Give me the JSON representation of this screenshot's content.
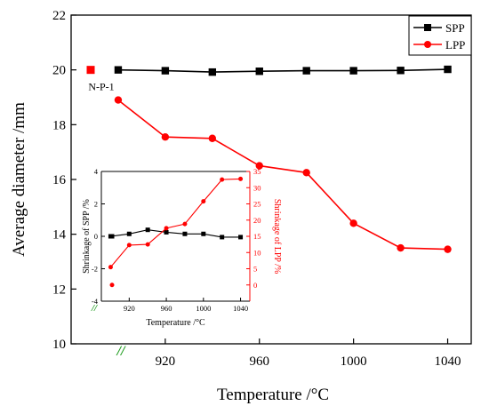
{
  "chart_data": [
    {
      "type": "line",
      "role": "main",
      "xlabel": "Temperature /°C",
      "ylabel": "Average diameter /mm",
      "xlim": [
        880,
        1050
      ],
      "ylim": [
        10,
        22
      ],
      "x_ticks": [
        920,
        960,
        1000,
        1040
      ],
      "y_ticks": [
        10,
        12,
        14,
        16,
        18,
        20,
        22
      ],
      "legend_position": "top-right",
      "axis_break_mark": "//",
      "reference_point": {
        "label": "N-P-1",
        "y": 20
      },
      "series": [
        {
          "name": "SPP",
          "color": "#000000",
          "marker": "square",
          "x": [
            900,
            920,
            940,
            960,
            980,
            1000,
            1020,
            1040
          ],
          "y": [
            20.0,
            19.97,
            19.92,
            19.95,
            19.97,
            19.97,
            19.98,
            20.02
          ]
        },
        {
          "name": "LPP",
          "color": "#ff0000",
          "marker": "circle",
          "x": [
            900,
            920,
            940,
            960,
            980,
            1000,
            1020,
            1040
          ],
          "y": [
            18.9,
            17.55,
            17.5,
            16.5,
            16.25,
            14.4,
            13.5,
            13.45
          ]
        }
      ]
    },
    {
      "type": "line",
      "role": "inset",
      "xlabel": "Temperature /°C",
      "ylabel_left": "Shrinkage of SPP /%",
      "ylabel_right": "Shrinkage of LPP /%",
      "xlim": [
        890,
        1050
      ],
      "ylim_left": [
        -4,
        4
      ],
      "ylim_right": [
        -5,
        35
      ],
      "x_ticks": [
        920,
        960,
        1000,
        1040
      ],
      "y_ticks_left": [
        -4,
        -2,
        0,
        2,
        4
      ],
      "y_ticks_right": [
        0,
        5,
        10,
        15,
        20,
        25,
        30,
        35
      ],
      "axis_break_mark": "//",
      "reference_left": 0,
      "reference_right": 0,
      "series": [
        {
          "name": "SPP",
          "axis": "left",
          "color": "#000000",
          "marker": "square",
          "x": [
            900,
            920,
            940,
            960,
            980,
            1000,
            1020,
            1040
          ],
          "y": [
            0.0,
            0.15,
            0.4,
            0.25,
            0.15,
            0.15,
            -0.05,
            -0.05
          ]
        },
        {
          "name": "LPP",
          "axis": "right",
          "color": "#ff0000",
          "marker": "circle",
          "x": [
            900,
            920,
            940,
            960,
            980,
            1000,
            1020,
            1040
          ],
          "y": [
            5.5,
            12.3,
            12.5,
            17.5,
            18.8,
            25.8,
            32.5,
            32.7
          ]
        }
      ]
    }
  ]
}
